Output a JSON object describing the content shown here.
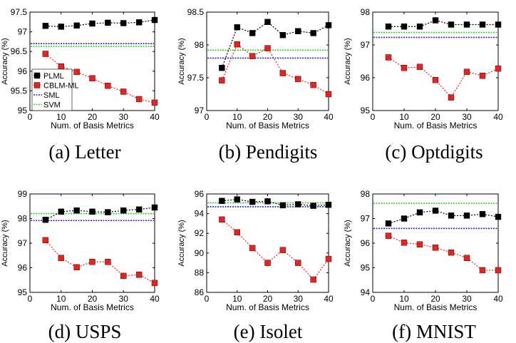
{
  "figure": {
    "chart_data": [
      {
        "type": "line",
        "caption": "(a) Letter",
        "xlabel": "Num. of Basis Metrics",
        "ylabel": "Accuracy (%)",
        "xlim": [
          0,
          40
        ],
        "ylim": [
          95,
          97.5
        ],
        "xticks": [
          0,
          10,
          20,
          30,
          40
        ],
        "yticks": [
          95,
          95.5,
          96,
          96.5,
          97,
          97.5
        ],
        "x": [
          5,
          10,
          15,
          20,
          25,
          30,
          35,
          40
        ],
        "series": [
          {
            "name": "PLML",
            "values": [
              97.15,
              97.13,
              97.16,
              97.21,
              97.23,
              97.22,
              97.24,
              97.3
            ]
          },
          {
            "name": "CBLM-ML",
            "values": [
              96.44,
              96.12,
              95.98,
              95.82,
              95.63,
              95.48,
              95.29,
              95.2
            ]
          }
        ],
        "baselines": [
          {
            "name": "SML",
            "value": 96.7
          },
          {
            "name": "SVM",
            "value": 96.63
          }
        ],
        "legend": {
          "placement": "lower-left",
          "entries": [
            "PLML",
            "CBLM-ML",
            "SML",
            "SVM"
          ]
        }
      },
      {
        "type": "line",
        "caption": "(b) Pendigits",
        "xlabel": "Num. of Basis Metrics",
        "ylabel": "Accuracy (%)",
        "xlim": [
          0,
          40
        ],
        "ylim": [
          97,
          98.5
        ],
        "xticks": [
          0,
          10,
          20,
          30,
          40
        ],
        "yticks": [
          97,
          97.5,
          98,
          98.5
        ],
        "x": [
          5,
          10,
          15,
          20,
          25,
          30,
          35,
          40
        ],
        "series": [
          {
            "name": "PLML",
            "values": [
              97.65,
              98.27,
              98.18,
              98.35,
              98.15,
              98.21,
              98.18,
              98.3
            ]
          },
          {
            "name": "CBLM-ML",
            "values": [
              97.46,
              98.01,
              97.83,
              97.95,
              97.57,
              97.48,
              97.39,
              97.25
            ]
          }
        ],
        "baselines": [
          {
            "name": "SML",
            "value": 97.8
          },
          {
            "name": "SVM",
            "value": 97.92
          }
        ]
      },
      {
        "type": "line",
        "caption": "(c) Optdigits",
        "xlabel": "Num. of Basis Metrics",
        "ylabel": "Accuracy (%)",
        "xlim": [
          0,
          40
        ],
        "ylim": [
          95,
          98
        ],
        "xticks": [
          0,
          10,
          20,
          30,
          40
        ],
        "yticks": [
          95,
          96,
          97,
          98
        ],
        "x": [
          5,
          10,
          15,
          20,
          25,
          30,
          35,
          40
        ],
        "series": [
          {
            "name": "PLML",
            "values": [
              97.56,
              97.56,
              97.56,
              97.75,
              97.62,
              97.62,
              97.62,
              97.62
            ]
          },
          {
            "name": "CBLM-ML",
            "values": [
              96.62,
              96.3,
              96.33,
              95.93,
              95.4,
              96.18,
              96.06,
              96.28
            ]
          }
        ],
        "baselines": [
          {
            "name": "SML",
            "value": 97.23
          },
          {
            "name": "SVM",
            "value": 97.38
          }
        ]
      },
      {
        "type": "line",
        "caption": "(d) USPS",
        "xlabel": "Num. of Basis Metrics",
        "ylabel": "Accuracy (%)",
        "xlim": [
          0,
          40
        ],
        "ylim": [
          95,
          99
        ],
        "xticks": [
          0,
          10,
          20,
          30,
          40
        ],
        "yticks": [
          95,
          96,
          97,
          98,
          99
        ],
        "x": [
          5,
          10,
          15,
          20,
          25,
          30,
          35,
          40
        ],
        "series": [
          {
            "name": "PLML",
            "values": [
              97.95,
              98.28,
              98.33,
              98.28,
              98.26,
              98.33,
              98.37,
              98.45
            ]
          },
          {
            "name": "CBLM-ML",
            "values": [
              97.12,
              96.4,
              96.02,
              96.24,
              96.24,
              95.67,
              95.72,
              95.38
            ]
          }
        ],
        "baselines": [
          {
            "name": "SML",
            "value": 97.92
          },
          {
            "name": "SVM",
            "value": 98.2
          }
        ]
      },
      {
        "type": "line",
        "caption": "(e) Isolet",
        "xlabel": "Num. of Basis Metrics",
        "ylabel": "Accuracy (%)",
        "xlim": [
          0,
          40
        ],
        "ylim": [
          86,
          96
        ],
        "xticks": [
          0,
          10,
          20,
          30,
          40
        ],
        "yticks": [
          86,
          88,
          90,
          92,
          94,
          96
        ],
        "x": [
          5,
          10,
          15,
          20,
          25,
          30,
          35,
          40
        ],
        "series": [
          {
            "name": "PLML",
            "values": [
              95.3,
              95.45,
              95.2,
              95.25,
              94.85,
              94.95,
              94.8,
              94.9
            ]
          },
          {
            "name": "CBLM-ML",
            "values": [
              93.4,
              92.1,
              90.5,
              89.0,
              90.3,
              89.0,
              87.3,
              89.4
            ]
          }
        ],
        "baselines": [
          {
            "name": "SML",
            "value": 94.7
          },
          {
            "name": "SVM",
            "value": 95.1
          }
        ]
      },
      {
        "type": "line",
        "caption": "(f) MNIST",
        "xlabel": "Num. of Basis Metrics",
        "ylabel": "Accuracy (%)",
        "xlim": [
          0,
          40
        ],
        "ylim": [
          94,
          98
        ],
        "xticks": [
          0,
          10,
          20,
          30,
          40
        ],
        "yticks": [
          94,
          95,
          96,
          97,
          98
        ],
        "x": [
          5,
          10,
          15,
          20,
          25,
          30,
          35,
          40
        ],
        "series": [
          {
            "name": "PLML",
            "values": [
              96.8,
              97.0,
              97.25,
              97.32,
              97.12,
              97.12,
              97.18,
              97.07
            ]
          },
          {
            "name": "CBLM-ML",
            "values": [
              96.3,
              96.02,
              95.95,
              95.82,
              95.62,
              95.4,
              94.9,
              94.9
            ]
          }
        ],
        "baselines": [
          {
            "name": "SML",
            "value": 96.6
          },
          {
            "name": "SVM",
            "value": 97.62
          }
        ]
      }
    ],
    "colors": {
      "PLML": "#000000",
      "CBLM-ML": "#e8231f",
      "SML": "#2424d0",
      "SVM": "#2ad12a"
    }
  }
}
